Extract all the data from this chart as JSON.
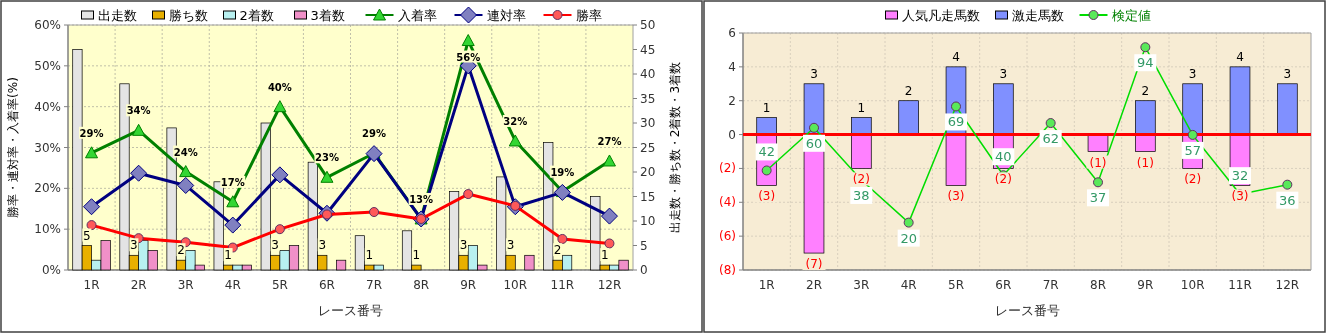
{
  "chart_data": [
    {
      "type": "bar",
      "categories": [
        "1R",
        "2R",
        "3R",
        "4R",
        "5R",
        "6R",
        "7R",
        "8R",
        "9R",
        "10R",
        "11R",
        "12R"
      ],
      "xlabel": "レース番号",
      "ylabel": "勝率・連対率・入着率(%)",
      "y2label": "出走数・勝ち数・2着数・3着数",
      "ylim": [
        0,
        60
      ],
      "yticks": [
        {
          "value": 0,
          "label": "0%"
        },
        {
          "value": 10,
          "label": "10%"
        },
        {
          "value": 20,
          "label": "20%"
        },
        {
          "value": 30,
          "label": "30%"
        },
        {
          "value": 40,
          "label": "40%"
        },
        {
          "value": 50,
          "label": "50%"
        },
        {
          "value": 60,
          "label": "60%"
        }
      ],
      "y2lim": [
        0,
        50
      ],
      "y2ticks": [
        0,
        5,
        10,
        15,
        20,
        25,
        30,
        35,
        40,
        45,
        50
      ],
      "grid": true,
      "legend": "top",
      "series": [
        {
          "name": "出走数",
          "color": "#e4e4e4",
          "axis": "y2",
          "values": [
            45,
            38,
            29,
            18,
            30,
            22,
            7,
            8,
            16,
            19,
            26,
            15
          ]
        },
        {
          "name": "勝ち数",
          "color": "#e8b000",
          "axis": "y2",
          "values": [
            5,
            3,
            2,
            1,
            3,
            3,
            1,
            1,
            3,
            3,
            2,
            1
          ],
          "value_labels": [
            "5",
            "3",
            "2",
            "1",
            "3",
            "3",
            "1",
            "1",
            "3",
            "3",
            "2",
            "1"
          ]
        },
        {
          "name": "2着数",
          "color": "#b8f0f0",
          "axis": "y2",
          "values": [
            2,
            6,
            4,
            1,
            4,
            0,
            1,
            0,
            5,
            0,
            3,
            1
          ]
        },
        {
          "name": "3着数",
          "color": "#f090c8",
          "axis": "y2",
          "values": [
            6,
            4,
            1,
            1,
            5,
            2,
            0,
            0,
            1,
            3,
            0,
            2
          ]
        },
        {
          "name": "入着率",
          "type": "line",
          "color": "#008000",
          "marker": "triangle",
          "values": [
            28.7,
            34.2,
            24.1,
            16.7,
            40.0,
            22.7,
            28.6,
            12.5,
            56.2,
            31.6,
            19.2,
            26.7
          ],
          "value_labels": [
            "29%",
            "34%",
            "24%",
            "17%",
            "40%",
            "23%",
            "29%",
            "13%",
            "56%",
            "32%",
            "19%",
            "27%"
          ]
        },
        {
          "name": "連対率",
          "type": "line",
          "color": "#000080",
          "marker": "diamond",
          "values": [
            15.5,
            23.7,
            20.7,
            11.0,
            23.3,
            13.9,
            28.5,
            12.5,
            50.0,
            15.5,
            19.0,
            13.2
          ]
        },
        {
          "name": "勝率",
          "type": "line",
          "color": "#ff0000",
          "marker": "circle",
          "values": [
            11.0,
            7.8,
            6.8,
            5.5,
            10.0,
            13.6,
            14.2,
            12.5,
            18.6,
            15.7,
            7.6,
            6.5
          ]
        }
      ]
    },
    {
      "type": "bar",
      "categories": [
        "1R",
        "2R",
        "3R",
        "4R",
        "5R",
        "6R",
        "7R",
        "8R",
        "9R",
        "10R",
        "11R",
        "12R"
      ],
      "xlabel": "レース番号",
      "stacked": true,
      "ylim": [
        -8,
        6
      ],
      "yticks": [
        {
          "value": -8,
          "label": "(8)"
        },
        {
          "value": -6,
          "label": "(6)"
        },
        {
          "value": -4,
          "label": "(4)"
        },
        {
          "value": -2,
          "label": "(2)"
        },
        0,
        2,
        4,
        6
      ],
      "y2lim": [
        0,
        100
      ],
      "grid": true,
      "legend": "top",
      "ref_lines": [
        {
          "axis": "y",
          "value": 0,
          "color": "#ff0000"
        }
      ],
      "series": [
        {
          "name": "人気凡走馬数",
          "color": "#ff80ff",
          "values": [
            -3,
            -7,
            -2,
            null,
            -3,
            -2,
            null,
            -1,
            -1,
            -2,
            -3,
            null
          ],
          "value_labels": [
            "(3)",
            "(7)",
            "(2)",
            null,
            "(3)",
            "(2)",
            null,
            "(1)",
            "(1)",
            "(2)",
            "(3)",
            null
          ]
        },
        {
          "name": "激走馬数",
          "color": "#8090ff",
          "values": [
            1,
            3,
            1,
            2,
            4,
            3,
            null,
            null,
            2,
            3,
            4,
            3
          ],
          "value_labels": [
            "1",
            "3",
            "1",
            "2",
            "4",
            "3",
            null,
            null,
            "2",
            "3",
            "4",
            "3"
          ]
        },
        {
          "name": "検定値",
          "type": "line",
          "axis": "y2",
          "color": "#00dd00",
          "marker": "circle",
          "values": [
            42,
            60,
            38,
            20,
            69,
            40,
            62,
            37,
            94,
            57,
            32,
            36
          ],
          "value_labels": [
            "42",
            "60",
            "38",
            "20",
            "69",
            "40",
            "62",
            "37",
            "94",
            "57",
            "32",
            "36"
          ]
        }
      ]
    }
  ]
}
